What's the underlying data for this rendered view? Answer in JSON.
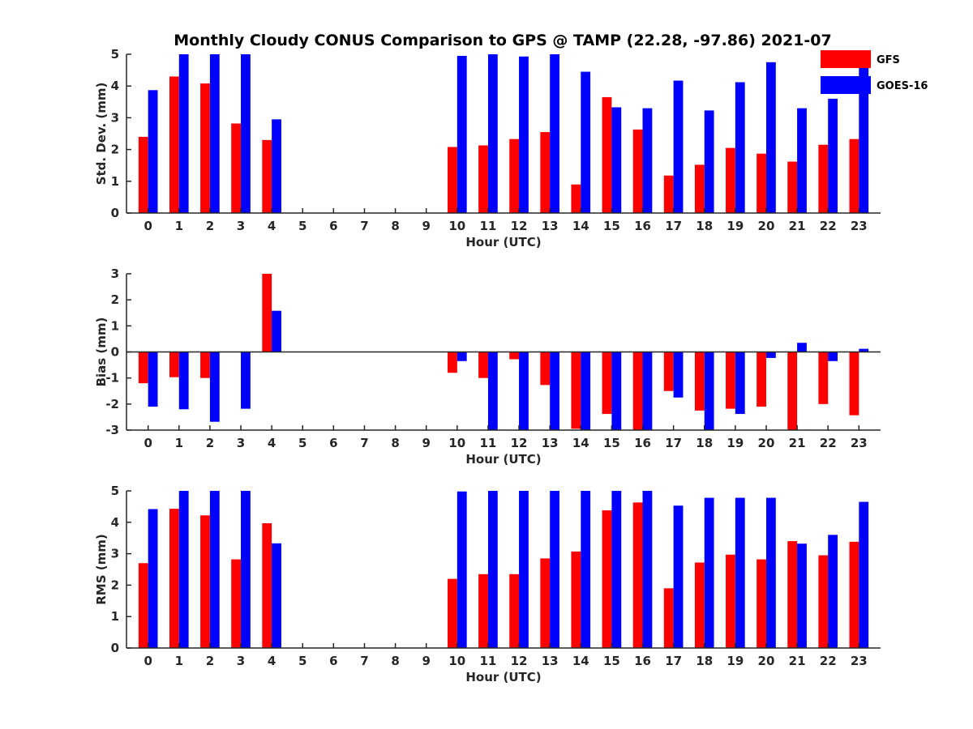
{
  "chart_data": {
    "type": "bar",
    "title": "Monthly Cloudy CONUS Comparison to GPS @ TAMP (22.28, -97.86) 2021-07",
    "legend": {
      "placement": "top-right",
      "entries": [
        "GFS",
        "GOES-16"
      ]
    },
    "series_colors": {
      "GFS": "#ff0000",
      "GOES-16": "#0000ff"
    },
    "categories": [
      "0",
      "1",
      "2",
      "3",
      "4",
      "5",
      "6",
      "7",
      "8",
      "9",
      "10",
      "11",
      "12",
      "13",
      "14",
      "15",
      "16",
      "17",
      "18",
      "19",
      "20",
      "21",
      "22",
      "23"
    ],
    "panels": [
      {
        "id": "std",
        "ylabel": "Std. Dev. (mm)",
        "xlabel": "Hour (UTC)",
        "ylim": [
          0,
          5
        ],
        "yticks": [
          "0",
          "1",
          "2",
          "3",
          "4",
          "5"
        ],
        "series": [
          {
            "name": "GFS",
            "values": [
              2.4,
              4.3,
              4.08,
              2.82,
              2.3,
              null,
              null,
              null,
              null,
              null,
              2.08,
              2.13,
              2.33,
              2.55,
              0.9,
              3.65,
              2.63,
              1.18,
              1.52,
              2.05,
              1.87,
              1.62,
              2.15,
              2.33
            ]
          },
          {
            "name": "GOES-16",
            "values": [
              3.87,
              5.0,
              5.0,
              5.0,
              2.95,
              null,
              null,
              null,
              null,
              null,
              4.95,
              5.0,
              4.93,
              5.0,
              4.45,
              3.33,
              3.3,
              4.17,
              3.23,
              4.12,
              4.75,
              3.3,
              3.6,
              4.75
            ]
          }
        ]
      },
      {
        "id": "bias",
        "ylabel": "Bias (mm)",
        "xlabel": "Hour (UTC)",
        "ylim": [
          -3,
          3
        ],
        "yticks": [
          "-3",
          "-2",
          "-1",
          "0",
          "1",
          "2",
          "3"
        ],
        "series": [
          {
            "name": "GFS",
            "values": [
              -1.2,
              -0.97,
              -1.0,
              null,
              3.0,
              null,
              null,
              null,
              null,
              null,
              -0.8,
              -1.0,
              -0.28,
              -1.27,
              -2.95,
              -2.38,
              -3.0,
              -1.5,
              -2.25,
              -2.18,
              -2.1,
              -3.0,
              -2.0,
              -2.43
            ]
          },
          {
            "name": "GOES-16",
            "values": [
              -2.1,
              -2.2,
              -2.68,
              -2.18,
              1.58,
              null,
              null,
              null,
              null,
              null,
              -0.35,
              -3.0,
              -3.0,
              -3.0,
              -3.0,
              -3.0,
              -3.0,
              -1.75,
              -3.0,
              -2.38,
              -0.23,
              0.35,
              -0.35,
              0.12
            ]
          }
        ]
      },
      {
        "id": "rms",
        "ylabel": "RMS (mm)",
        "xlabel": "Hour (UTC)",
        "ylim": [
          0,
          5
        ],
        "yticks": [
          "0",
          "1",
          "2",
          "3",
          "4",
          "5"
        ],
        "series": [
          {
            "name": "GFS",
            "values": [
              2.7,
              4.43,
              4.22,
              2.82,
              3.97,
              null,
              null,
              null,
              null,
              null,
              2.2,
              2.35,
              2.35,
              2.85,
              3.07,
              4.38,
              4.63,
              1.9,
              2.72,
              2.97,
              2.82,
              3.4,
              2.95,
              3.38
            ]
          },
          {
            "name": "GOES-16",
            "values": [
              4.42,
              5.0,
              5.0,
              5.0,
              3.33,
              null,
              null,
              null,
              null,
              null,
              4.98,
              5.0,
              5.0,
              5.0,
              5.0,
              5.0,
              5.0,
              4.53,
              4.78,
              4.78,
              4.78,
              3.32,
              3.6,
              4.65
            ]
          }
        ]
      }
    ]
  }
}
